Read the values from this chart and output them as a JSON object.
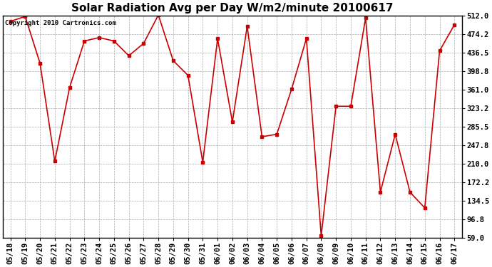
{
  "title": "Solar Radiation Avg per Day W/m2/minute 20100617",
  "copyright_text": "Copyright 2010 Cartronics.com",
  "dates": [
    "05/18",
    "05/19",
    "05/20",
    "05/21",
    "05/22",
    "05/23",
    "05/24",
    "05/25",
    "05/26",
    "05/27",
    "05/28",
    "05/29",
    "05/30",
    "05/31",
    "06/01",
    "06/02",
    "06/03",
    "06/04",
    "06/05",
    "06/06",
    "06/07",
    "06/08",
    "06/09",
    "06/10",
    "06/11",
    "06/12",
    "06/13",
    "06/14",
    "06/15",
    "06/16",
    "06/17"
  ],
  "values": [
    500,
    510,
    415,
    215,
    365,
    460,
    467,
    460,
    430,
    455,
    513,
    420,
    390,
    213,
    465,
    295,
    490,
    265,
    270,
    362,
    465,
    63,
    327,
    327,
    507,
    152,
    270,
    152,
    120,
    440,
    493
  ],
  "line_color": "#cc0000",
  "marker": "s",
  "marker_size": 3,
  "bg_color": "#ffffff",
  "grid_color": "#aaaaaa",
  "yticks": [
    59.0,
    96.8,
    134.5,
    172.2,
    210.0,
    247.8,
    285.5,
    323.2,
    361.0,
    398.8,
    436.5,
    474.2,
    512.0
  ],
  "ylim": [
    59.0,
    512.0
  ],
  "title_fontsize": 11,
  "tick_fontsize": 7.5,
  "copyright_fontsize": 6.5
}
